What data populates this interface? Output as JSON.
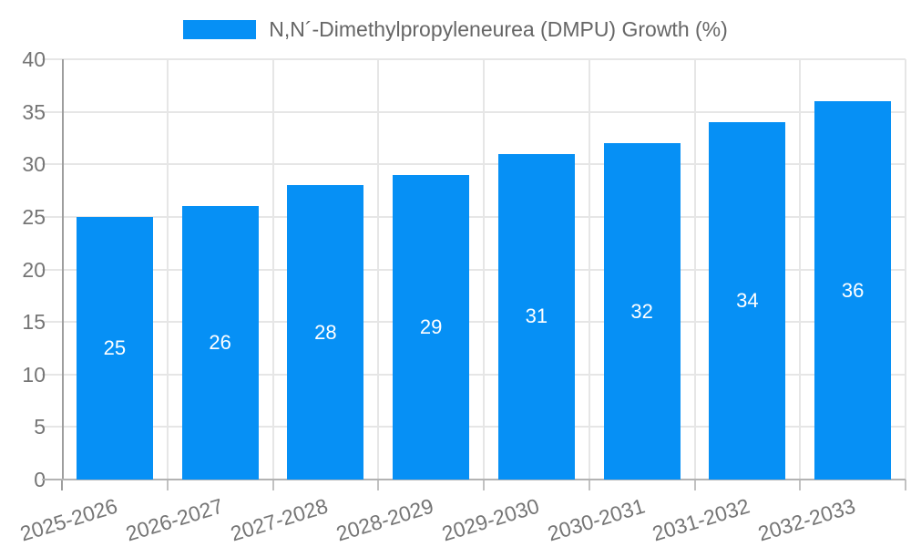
{
  "chart_data": {
    "type": "bar",
    "title": "N,N´-Dimethylpropyleneurea (DMPU) Growth (%)",
    "categories": [
      "2025-2026",
      "2026-2027",
      "2027-2028",
      "2028-2029",
      "2029-2030",
      "2030-2031",
      "2031-2032",
      "2032-2033"
    ],
    "values": [
      25,
      26,
      28,
      29,
      31,
      32,
      34,
      36
    ],
    "bar_value_labels": [
      "25",
      "26",
      "28",
      "29",
      "31",
      "32",
      "34",
      "36"
    ],
    "xlabel": "",
    "ylabel": "",
    "ylim": [
      0,
      40
    ],
    "yticks": [
      0,
      5,
      10,
      15,
      20,
      25,
      30,
      35,
      40
    ],
    "grid": true,
    "legend_position": "top",
    "x_label_rotation_deg": -17
  },
  "colors": {
    "bar": "#0690f5",
    "grid": "#e6e6e6",
    "y_axis": "#9e9e9e",
    "x_axis": "#b3b3b3",
    "x_tick": "#c2c2c2",
    "tick_text": "#757575",
    "title_text": "#666666",
    "value_text": "#ffffff",
    "background": "#ffffff"
  }
}
